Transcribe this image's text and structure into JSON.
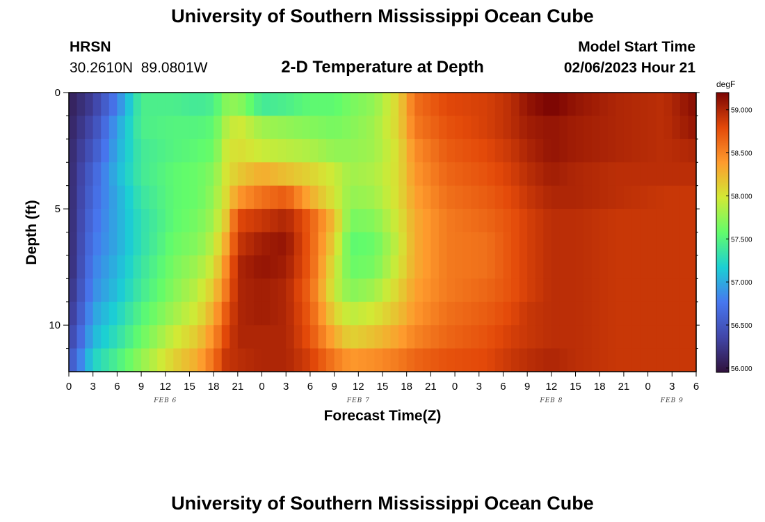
{
  "header": {
    "title": "University of Southern Mississippi Ocean Cube",
    "station": "HRSN",
    "coordinates": "30.2610N  89.0801W",
    "plot_title": "2-D Temperature at Depth",
    "model_start_label": "Model Start Time",
    "model_start_value": "02/06/2023 Hour 21"
  },
  "footer": {
    "title": "University of Southern Mississippi Ocean Cube"
  },
  "chart_data": {
    "type": "heatmap",
    "title": "2-D Temperature at Depth",
    "xlabel": "Forecast Time(Z)",
    "ylabel": "Depth (ft)",
    "x_hours_range": [
      0,
      78
    ],
    "x_tick_hours": [
      0,
      3,
      6,
      9,
      12,
      15,
      18,
      21,
      24,
      27,
      30,
      33,
      36,
      39,
      42,
      45,
      48,
      51,
      54,
      57,
      60,
      63,
      66,
      69,
      72,
      75,
      78
    ],
    "x_tick_labels": [
      "0",
      "3",
      "6",
      "9",
      "12",
      "15",
      "18",
      "21",
      "0",
      "3",
      "6",
      "9",
      "12",
      "15",
      "18",
      "21",
      "0",
      "3",
      "6",
      "9",
      "12",
      "15",
      "18",
      "21",
      "0",
      "3",
      "6"
    ],
    "date_labels": [
      {
        "hour": 12,
        "text": "FEB 6"
      },
      {
        "hour": 36,
        "text": "FEB 7"
      },
      {
        "hour": 60,
        "text": "FEB 8"
      },
      {
        "hour": 75,
        "text": "FEB 9"
      }
    ],
    "y_range": [
      0,
      12
    ],
    "y_major_ticks": [
      0,
      5,
      10
    ],
    "y_tick_labels": [
      "0",
      "5",
      "10"
    ],
    "y_minor_ticks": [
      1,
      2,
      3,
      4,
      6,
      7,
      8,
      9,
      11
    ],
    "depth_levels": [
      0.5,
      1.5,
      2.5,
      3.5,
      4.5,
      5.5,
      6.5,
      7.5,
      8.5,
      9.5,
      10.5,
      11.5
    ],
    "colorbar": {
      "unit": "degF",
      "min": 55.95,
      "max": 59.2,
      "ticks": [
        56.0,
        56.5,
        57.0,
        57.5,
        58.0,
        58.5,
        59.0
      ],
      "tick_labels": [
        "56.000",
        "56.500",
        "57.000",
        "57.500",
        "58.000",
        "58.500",
        "59.000"
      ]
    },
    "profile_knots": [
      {
        "hour": 0,
        "temps": [
          56.05,
          56.08,
          56.1,
          56.1,
          56.1,
          56.1,
          56.1,
          56.1,
          56.15,
          56.2,
          56.3,
          56.45
        ]
      },
      {
        "hour": 3,
        "temps": [
          56.3,
          56.4,
          56.5,
          56.6,
          56.65,
          56.7,
          56.75,
          56.8,
          56.85,
          56.95,
          57.05,
          57.2
        ]
      },
      {
        "hour": 6,
        "temps": [
          56.8,
          56.95,
          57.0,
          57.05,
          57.0,
          57.0,
          57.0,
          57.05,
          57.1,
          57.2,
          57.3,
          57.45
        ]
      },
      {
        "hour": 9,
        "temps": [
          57.45,
          57.45,
          57.4,
          57.4,
          57.35,
          57.3,
          57.3,
          57.35,
          57.4,
          57.5,
          57.6,
          57.75
        ]
      },
      {
        "hour": 13,
        "temps": [
          57.45,
          57.5,
          57.5,
          57.55,
          57.55,
          57.55,
          57.6,
          57.65,
          57.7,
          57.8,
          57.95,
          58.1
        ]
      },
      {
        "hour": 16,
        "temps": [
          57.4,
          57.5,
          57.55,
          57.6,
          57.6,
          57.65,
          57.7,
          57.8,
          57.9,
          58.0,
          58.15,
          58.3
        ]
      },
      {
        "hour": 18,
        "temps": [
          57.45,
          57.55,
          57.6,
          57.7,
          57.75,
          57.8,
          57.9,
          58.0,
          58.15,
          58.3,
          58.45,
          58.6
        ]
      },
      {
        "hour": 19.5,
        "temps": [
          57.7,
          57.85,
          57.95,
          58.0,
          58.05,
          58.15,
          58.3,
          58.45,
          58.55,
          58.7,
          58.8,
          58.9
        ]
      },
      {
        "hour": 21,
        "temps": [
          57.75,
          58.0,
          58.05,
          58.15,
          58.4,
          58.8,
          58.9,
          59.0,
          59.0,
          59.0,
          59.0,
          58.95
        ]
      },
      {
        "hour": 24,
        "temps": [
          57.4,
          57.8,
          57.95,
          58.3,
          58.6,
          58.9,
          59.05,
          59.1,
          59.05,
          59.05,
          59.0,
          59.0
        ]
      },
      {
        "hour": 27,
        "temps": [
          57.45,
          57.75,
          57.9,
          58.2,
          58.7,
          59.0,
          59.1,
          59.05,
          59.0,
          59.0,
          59.0,
          59.0
        ]
      },
      {
        "hour": 30,
        "temps": [
          57.55,
          57.7,
          57.85,
          58.1,
          58.3,
          58.7,
          58.7,
          58.7,
          58.65,
          58.7,
          58.75,
          58.85
        ]
      },
      {
        "hour": 33,
        "temps": [
          57.55,
          57.65,
          57.75,
          57.95,
          58.0,
          58.2,
          58.1,
          58.0,
          57.95,
          58.1,
          58.3,
          58.55
        ]
      },
      {
        "hour": 35,
        "temps": [
          57.65,
          57.7,
          57.75,
          57.8,
          57.75,
          57.65,
          57.55,
          57.6,
          57.7,
          57.9,
          58.1,
          58.4
        ]
      },
      {
        "hour": 38,
        "temps": [
          57.75,
          57.8,
          57.8,
          57.85,
          57.8,
          57.7,
          57.6,
          57.65,
          57.8,
          58.0,
          58.2,
          58.45
        ]
      },
      {
        "hour": 41,
        "temps": [
          58.1,
          58.1,
          58.05,
          58.05,
          58.05,
          58.0,
          57.95,
          58.0,
          58.1,
          58.2,
          58.35,
          58.55
        ]
      },
      {
        "hour": 43,
        "temps": [
          58.6,
          58.55,
          58.45,
          58.4,
          58.35,
          58.3,
          58.3,
          58.3,
          58.35,
          58.4,
          58.5,
          58.65
        ]
      },
      {
        "hour": 47,
        "temps": [
          58.8,
          58.75,
          58.7,
          58.65,
          58.6,
          58.55,
          58.55,
          58.55,
          58.55,
          58.6,
          58.65,
          58.75
        ]
      },
      {
        "hour": 52,
        "temps": [
          58.85,
          58.85,
          58.8,
          58.75,
          58.7,
          58.65,
          58.6,
          58.6,
          58.65,
          58.7,
          58.75,
          58.8
        ]
      },
      {
        "hour": 55,
        "temps": [
          58.95,
          58.95,
          58.9,
          58.85,
          58.8,
          58.75,
          58.75,
          58.75,
          58.75,
          58.8,
          58.85,
          58.9
        ]
      },
      {
        "hour": 57,
        "temps": [
          59.1,
          59.05,
          59.0,
          58.95,
          58.9,
          58.85,
          58.85,
          58.85,
          58.85,
          58.9,
          58.9,
          58.95
        ]
      },
      {
        "hour": 60,
        "temps": [
          59.2,
          59.1,
          59.1,
          59.05,
          59.0,
          58.95,
          58.95,
          58.95,
          58.95,
          58.95,
          58.95,
          59.0
        ]
      },
      {
        "hour": 63,
        "temps": [
          59.1,
          59.05,
          59.05,
          59.0,
          59.0,
          58.95,
          58.95,
          58.95,
          58.95,
          58.95,
          58.95,
          58.95
        ]
      },
      {
        "hour": 68,
        "temps": [
          59.0,
          59.0,
          59.0,
          58.95,
          58.95,
          58.9,
          58.9,
          58.9,
          58.9,
          58.9,
          58.9,
          58.9
        ]
      },
      {
        "hour": 74,
        "temps": [
          58.95,
          58.95,
          58.95,
          58.95,
          58.9,
          58.9,
          58.9,
          58.9,
          58.9,
          58.9,
          58.9,
          58.9
        ]
      },
      {
        "hour": 78,
        "temps": [
          59.15,
          59.1,
          59.0,
          58.95,
          58.9,
          58.9,
          58.9,
          58.9,
          58.9,
          58.9,
          58.9,
          58.9
        ]
      }
    ],
    "colormap": [
      "#30123b",
      "#4146a8",
      "#4777ef",
      "#1bcfd4",
      "#62fc6b",
      "#d2e935",
      "#fe9b2d",
      "#e34909",
      "#7a0403"
    ]
  }
}
